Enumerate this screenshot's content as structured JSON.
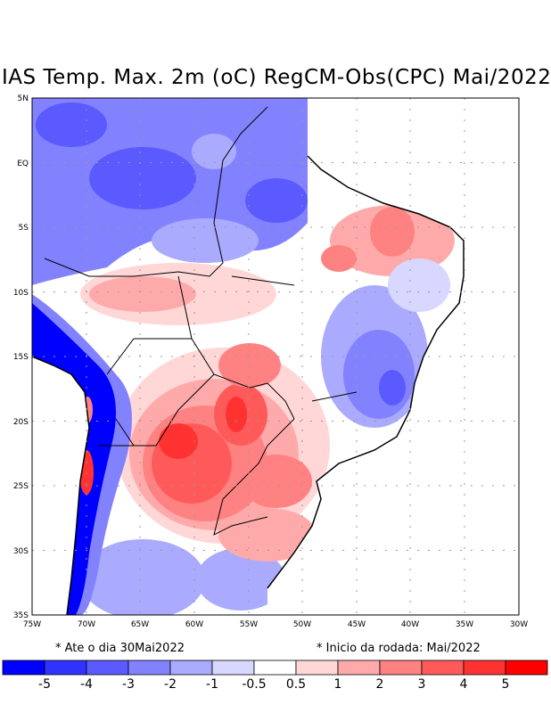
{
  "title": "IAS Temp. Max. 2m (oC) RegCM-Obs(CPC) Mai/2022",
  "map": {
    "lat_labels": [
      "5N",
      "EQ",
      "5S",
      "10S",
      "15S",
      "20S",
      "25S",
      "30S",
      "35S"
    ],
    "lon_labels": [
      "75W",
      "70W",
      "65W",
      "60W",
      "55W",
      "50W",
      "45W",
      "40W",
      "35W",
      "30W"
    ],
    "extent": {
      "lon": [
        -75,
        -30
      ],
      "lat": [
        -35,
        5
      ]
    }
  },
  "notes": {
    "left": "* Ate o dia 30Mai2022",
    "right": "* Inicio da rodada: Mai/2022"
  },
  "colorbar": {
    "colors": [
      "#0000ff",
      "#3232ff",
      "#5a5aff",
      "#8282ff",
      "#aaaaff",
      "#d7d7ff",
      "#ffffff",
      "#ffd7d7",
      "#ffaaaa",
      "#ff8282",
      "#ff5a5a",
      "#ff3232",
      "#ff0000"
    ],
    "labels": [
      "-5",
      "-4",
      "-3",
      "-2",
      "-1",
      "-0.5",
      "0.5",
      "1",
      "2",
      "3",
      "4",
      "5"
    ]
  }
}
